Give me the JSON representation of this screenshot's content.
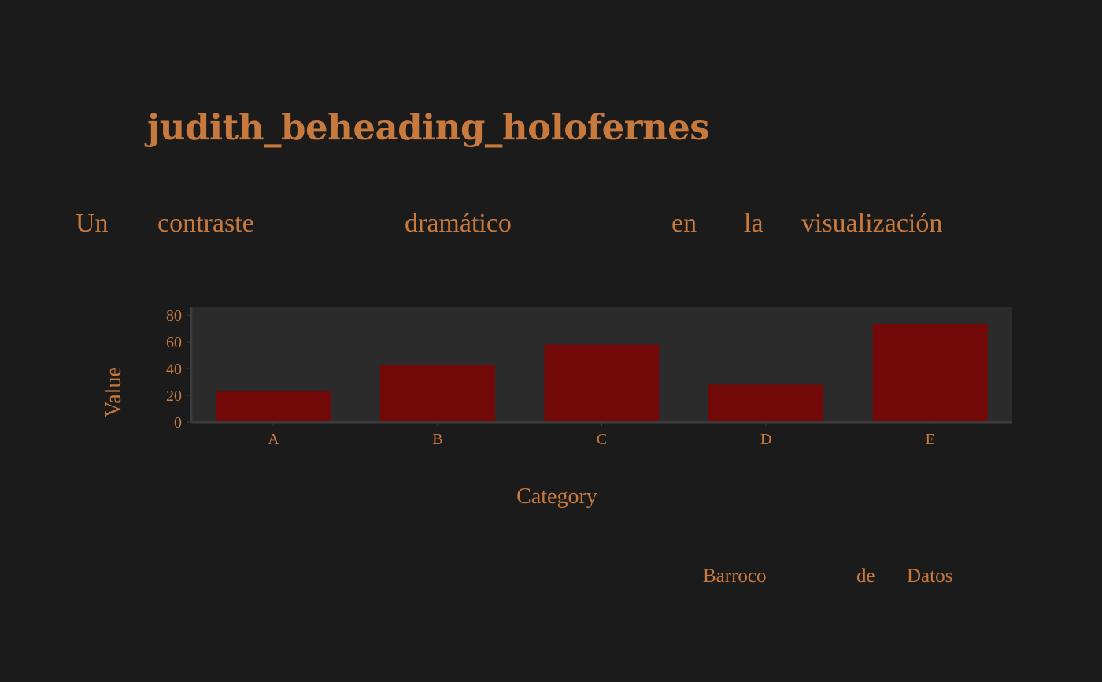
{
  "page": {
    "background": "#1b1b1b",
    "text_color": "#c8793d"
  },
  "header": {
    "title": "judith_beheading_holofernes",
    "subtitle_words": [
      "Un",
      "contraste",
      "dramático",
      "en",
      "la",
      "visualización"
    ]
  },
  "footer": {
    "words": [
      "Barroco",
      "de",
      "Datos"
    ]
  },
  "chart_data": {
    "type": "bar",
    "categories": [
      "A",
      "B",
      "C",
      "D",
      "E"
    ],
    "values": [
      23,
      43,
      58,
      28,
      73
    ],
    "xlabel": "Category",
    "ylabel": "Value",
    "ylim": [
      0,
      86
    ],
    "yticks": [
      0,
      20,
      40,
      60,
      80
    ],
    "bar_color": "#730808",
    "plot_background": "#2b2b2b",
    "axis_color": "#3c3c3c",
    "grid": false,
    "legend": "none"
  }
}
